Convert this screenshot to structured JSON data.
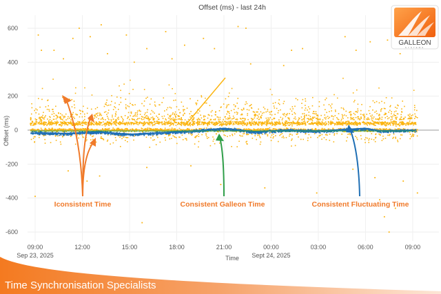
{
  "chart_data": {
    "type": "scatter",
    "title": "Offset (ms) - last 24h",
    "xlabel": "Time",
    "ylabel": "Offset (ms)",
    "ylim": [
      -650,
      680
    ],
    "xlim_hours_from_start": [
      -0.5,
      24.8
    ],
    "grid": true,
    "x_ticks": [
      {
        "label": "09:00",
        "sublabel": "Sep 23, 2025",
        "hour": 0
      },
      {
        "label": "12:00",
        "sublabel": "",
        "hour": 3
      },
      {
        "label": "15:00",
        "sublabel": "",
        "hour": 6
      },
      {
        "label": "18:00",
        "sublabel": "",
        "hour": 9
      },
      {
        "label": "21:00",
        "sublabel": "",
        "hour": 12
      },
      {
        "label": "00:00",
        "sublabel": "Sept 24, 2025",
        "hour": 15
      },
      {
        "label": "03:00",
        "sublabel": "",
        "hour": 18
      },
      {
        "label": "06:00",
        "sublabel": "",
        "hour": 21
      },
      {
        "label": "09:00",
        "sublabel": "",
        "hour": 24
      }
    ],
    "y_ticks": [
      600,
      400,
      200,
      0,
      -200,
      -400,
      -600
    ],
    "series": [
      {
        "color": "#fbb40f",
        "band_center": 40,
        "band_center_2": 0,
        "outliers": [
          [
            0.2,
            560
          ],
          [
            0.4,
            470
          ],
          [
            1.2,
            470
          ],
          [
            1.8,
            420
          ],
          [
            2.4,
            540
          ],
          [
            2.8,
            600
          ],
          [
            3.5,
            550
          ],
          [
            4.2,
            620
          ],
          [
            4.6,
            450
          ],
          [
            5.8,
            560
          ],
          [
            6.3,
            400
          ],
          [
            7.1,
            480
          ],
          [
            8.3,
            580
          ],
          [
            8.7,
            420
          ],
          [
            9.5,
            500
          ],
          [
            10.7,
            540
          ],
          [
            11.4,
            480
          ],
          [
            12.9,
            610
          ],
          [
            13.4,
            600
          ],
          [
            13.7,
            390
          ],
          [
            15.8,
            380
          ],
          [
            16.3,
            470
          ],
          [
            17.0,
            480
          ],
          [
            19.7,
            550
          ],
          [
            20.4,
            470
          ],
          [
            21.3,
            520
          ],
          [
            22.4,
            530
          ],
          [
            22.8,
            580
          ],
          [
            23.2,
            450
          ],
          [
            0.0,
            -390
          ],
          [
            2.1,
            -240
          ],
          [
            3.3,
            -300
          ],
          [
            4.1,
            -270
          ],
          [
            6.8,
            -545
          ],
          [
            7.1,
            -220
          ],
          [
            9.9,
            -210
          ],
          [
            11.8,
            -320
          ],
          [
            14.6,
            -340
          ],
          [
            17.9,
            -370
          ],
          [
            20.2,
            -230
          ],
          [
            21.6,
            -280
          ],
          [
            21.9,
            -410
          ],
          [
            22.2,
            -510
          ],
          [
            22.5,
            -600
          ],
          [
            22.9,
            -460
          ],
          [
            23.4,
            -300
          ],
          [
            24.3,
            -370
          ]
        ]
      },
      {
        "color": "#1f6fb4",
        "wave_points": [
          [
            0,
            -15
          ],
          [
            2,
            -20
          ],
          [
            4,
            -10
          ],
          [
            6,
            -25
          ],
          [
            8,
            -15
          ],
          [
            10,
            -5
          ],
          [
            12,
            10
          ],
          [
            14,
            -10
          ],
          [
            16,
            0
          ],
          [
            18,
            -5
          ],
          [
            20,
            5
          ],
          [
            21,
            10
          ],
          [
            22,
            -5
          ],
          [
            24,
            0
          ]
        ]
      },
      {
        "color": "#2e9e48",
        "line_value": -5
      }
    ],
    "annotations": [
      {
        "text": "Iconsistent Time",
        "color": "#f07a2a"
      },
      {
        "text": "Consistent Galleon Time",
        "color": "#2e9e48"
      },
      {
        "text": "Consistent Fluctuating Time",
        "color": "#1f6fb4"
      }
    ]
  },
  "logo": {
    "name": "GALLEON",
    "tagline": "SYSTEMS"
  },
  "footer": {
    "tagline": "Time Synchronisation Specialists"
  },
  "colors": {
    "accent": "#f47a20",
    "annotation_text": "#f07a2a"
  }
}
